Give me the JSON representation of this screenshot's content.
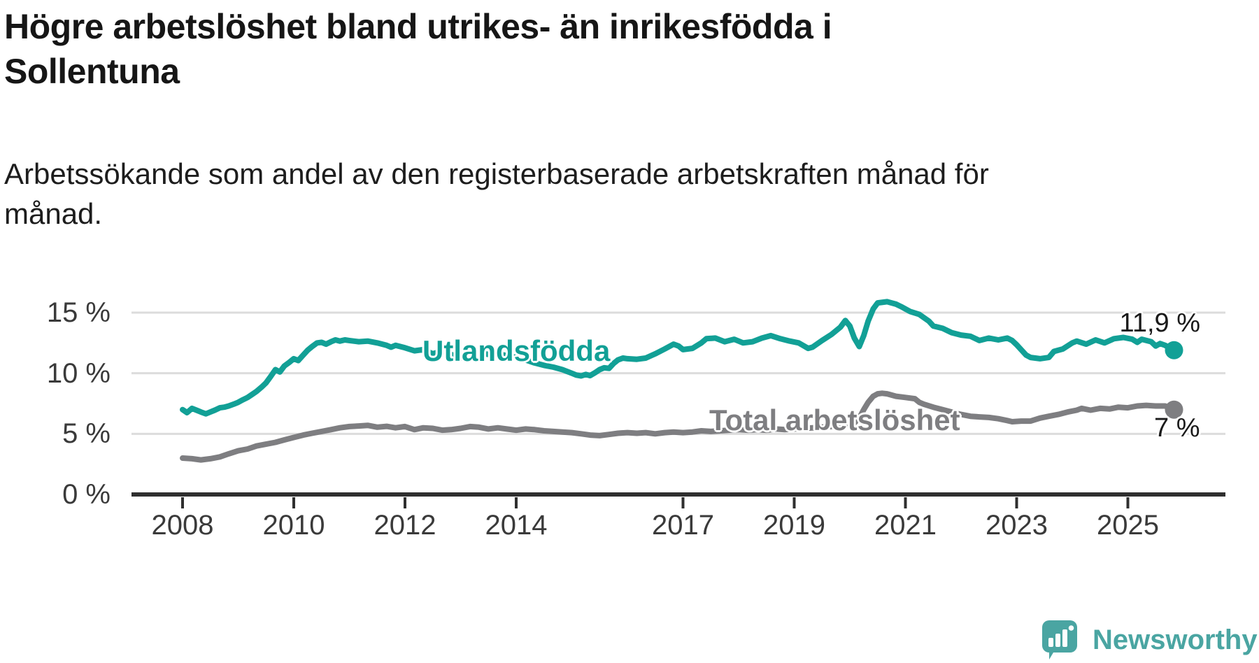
{
  "title": {
    "lines": [
      "Högre arbetslöshet bland utrikes- än inrikesfödda i",
      "Sollentuna"
    ],
    "full": "Högre arbetslöshet bland utrikes- än inrikesfödda i Sollentuna"
  },
  "subtitle": {
    "lines": [
      "Arbetssökande som andel av den registerbaserade arbetskraften månad för",
      "månad."
    ],
    "full": "Arbetssökande som andel av den registerbaserade arbetskraften månad för månad."
  },
  "branding": {
    "name": "Newsworthy",
    "icon": "newsworthy-bar-chart-bubble",
    "color": "#4aa5a2"
  },
  "colors": {
    "background": "#ffffff",
    "grid": "#dcdcdc",
    "axis": "#2f2f2f",
    "tick_text": "#3a3a3a",
    "end_label_text": "#1a1a1a",
    "series_foreign_born": "#12a096",
    "series_total": "#7e7e81"
  },
  "chart_data": {
    "type": "line",
    "title": "Högre arbetslöshet bland utrikes- än inrikesfödda i Sollentuna",
    "subtitle": "Arbetssökande som andel av den registerbaserade arbetskraften månad för månad.",
    "unit": "%",
    "grid": "horizontal",
    "legend_position": "inline-labels",
    "xlim": [
      2007.9,
      2026.7
    ],
    "ylim": [
      0,
      16.5
    ],
    "x_ticks": [
      {
        "value": 2008,
        "label": "2008"
      },
      {
        "value": 2010,
        "label": "2010"
      },
      {
        "value": 2012,
        "label": "2012"
      },
      {
        "value": 2014,
        "label": "2014"
      },
      {
        "value": 2017,
        "label": "2017"
      },
      {
        "value": 2019,
        "label": "2019"
      },
      {
        "value": 2021,
        "label": "2021"
      },
      {
        "value": 2023,
        "label": "2023"
      },
      {
        "value": 2025,
        "label": "2025"
      }
    ],
    "y_ticks": [
      {
        "value": 15,
        "label": "15 %"
      },
      {
        "value": 10,
        "label": "10 %"
      },
      {
        "value": 5,
        "label": "5 %"
      },
      {
        "value": 0,
        "label": "0 %"
      }
    ],
    "series": [
      {
        "name": "Utlandsfödda",
        "color": "#12a096",
        "end_label": "11,9 %",
        "end_value": 11.9,
        "points": [
          [
            2008.0,
            7.0
          ],
          [
            2008.08,
            6.75
          ],
          [
            2008.17,
            7.1
          ],
          [
            2008.25,
            6.95
          ],
          [
            2008.33,
            6.8
          ],
          [
            2008.42,
            6.65
          ],
          [
            2008.5,
            6.8
          ],
          [
            2008.58,
            6.95
          ],
          [
            2008.67,
            7.15
          ],
          [
            2008.75,
            7.2
          ],
          [
            2008.83,
            7.3
          ],
          [
            2008.92,
            7.45
          ],
          [
            2009.0,
            7.6
          ],
          [
            2009.08,
            7.8
          ],
          [
            2009.17,
            8.0
          ],
          [
            2009.25,
            8.25
          ],
          [
            2009.33,
            8.5
          ],
          [
            2009.42,
            8.85
          ],
          [
            2009.5,
            9.2
          ],
          [
            2009.58,
            9.7
          ],
          [
            2009.67,
            10.3
          ],
          [
            2009.75,
            10.1
          ],
          [
            2009.83,
            10.6
          ],
          [
            2009.92,
            10.9
          ],
          [
            2010.0,
            11.2
          ],
          [
            2010.08,
            11.05
          ],
          [
            2010.17,
            11.5
          ],
          [
            2010.25,
            11.9
          ],
          [
            2010.33,
            12.2
          ],
          [
            2010.42,
            12.5
          ],
          [
            2010.5,
            12.55
          ],
          [
            2010.58,
            12.4
          ],
          [
            2010.67,
            12.6
          ],
          [
            2010.75,
            12.75
          ],
          [
            2010.83,
            12.65
          ],
          [
            2010.92,
            12.75
          ],
          [
            2011.0,
            12.7
          ],
          [
            2011.17,
            12.6
          ],
          [
            2011.33,
            12.65
          ],
          [
            2011.5,
            12.5
          ],
          [
            2011.67,
            12.3
          ],
          [
            2011.75,
            12.15
          ],
          [
            2011.83,
            12.3
          ],
          [
            2012.0,
            12.1
          ],
          [
            2012.17,
            11.85
          ],
          [
            2012.33,
            11.95
          ],
          [
            2012.5,
            11.6
          ],
          [
            2012.67,
            11.85
          ],
          [
            2012.83,
            11.55
          ],
          [
            2013.0,
            11.25
          ],
          [
            2013.17,
            11.8
          ],
          [
            2013.33,
            11.7
          ],
          [
            2013.5,
            11.55
          ],
          [
            2013.67,
            11.6
          ],
          [
            2013.83,
            11.45
          ],
          [
            2014.0,
            11.3
          ],
          [
            2014.17,
            11.1
          ],
          [
            2014.33,
            10.85
          ],
          [
            2014.5,
            10.65
          ],
          [
            2014.67,
            10.5
          ],
          [
            2014.83,
            10.3
          ],
          [
            2015.0,
            10.0
          ],
          [
            2015.08,
            9.85
          ],
          [
            2015.17,
            9.78
          ],
          [
            2015.25,
            9.9
          ],
          [
            2015.33,
            9.8
          ],
          [
            2015.42,
            10.05
          ],
          [
            2015.5,
            10.3
          ],
          [
            2015.58,
            10.45
          ],
          [
            2015.67,
            10.4
          ],
          [
            2015.75,
            10.8
          ],
          [
            2015.83,
            11.1
          ],
          [
            2015.92,
            11.25
          ],
          [
            2016.0,
            11.2
          ],
          [
            2016.17,
            11.15
          ],
          [
            2016.33,
            11.25
          ],
          [
            2016.5,
            11.6
          ],
          [
            2016.67,
            12.0
          ],
          [
            2016.83,
            12.4
          ],
          [
            2016.92,
            12.25
          ],
          [
            2017.0,
            11.95
          ],
          [
            2017.17,
            12.05
          ],
          [
            2017.33,
            12.5
          ],
          [
            2017.42,
            12.85
          ],
          [
            2017.58,
            12.9
          ],
          [
            2017.75,
            12.6
          ],
          [
            2017.92,
            12.8
          ],
          [
            2018.08,
            12.5
          ],
          [
            2018.25,
            12.6
          ],
          [
            2018.42,
            12.9
          ],
          [
            2018.58,
            13.1
          ],
          [
            2018.75,
            12.85
          ],
          [
            2018.92,
            12.65
          ],
          [
            2019.08,
            12.5
          ],
          [
            2019.25,
            12.05
          ],
          [
            2019.33,
            12.15
          ],
          [
            2019.5,
            12.7
          ],
          [
            2019.67,
            13.2
          ],
          [
            2019.83,
            13.8
          ],
          [
            2019.92,
            14.35
          ],
          [
            2020.0,
            13.9
          ],
          [
            2020.08,
            12.9
          ],
          [
            2020.17,
            12.2
          ],
          [
            2020.25,
            13.1
          ],
          [
            2020.33,
            14.3
          ],
          [
            2020.42,
            15.3
          ],
          [
            2020.5,
            15.8
          ],
          [
            2020.67,
            15.9
          ],
          [
            2020.83,
            15.7
          ],
          [
            2020.92,
            15.5
          ],
          [
            2021.08,
            15.1
          ],
          [
            2021.25,
            14.85
          ],
          [
            2021.42,
            14.3
          ],
          [
            2021.5,
            13.9
          ],
          [
            2021.67,
            13.7
          ],
          [
            2021.83,
            13.35
          ],
          [
            2022.0,
            13.15
          ],
          [
            2022.17,
            13.05
          ],
          [
            2022.33,
            12.7
          ],
          [
            2022.5,
            12.9
          ],
          [
            2022.67,
            12.75
          ],
          [
            2022.83,
            12.9
          ],
          [
            2022.92,
            12.7
          ],
          [
            2023.0,
            12.35
          ],
          [
            2023.08,
            11.95
          ],
          [
            2023.17,
            11.5
          ],
          [
            2023.25,
            11.3
          ],
          [
            2023.42,
            11.2
          ],
          [
            2023.58,
            11.3
          ],
          [
            2023.67,
            11.8
          ],
          [
            2023.83,
            12.0
          ],
          [
            2024.0,
            12.5
          ],
          [
            2024.08,
            12.65
          ],
          [
            2024.25,
            12.4
          ],
          [
            2024.42,
            12.75
          ],
          [
            2024.58,
            12.5
          ],
          [
            2024.75,
            12.85
          ],
          [
            2024.92,
            12.95
          ],
          [
            2025.08,
            12.8
          ],
          [
            2025.17,
            12.55
          ],
          [
            2025.25,
            12.8
          ],
          [
            2025.42,
            12.6
          ],
          [
            2025.5,
            12.25
          ],
          [
            2025.58,
            12.45
          ],
          [
            2025.67,
            12.3
          ],
          [
            2025.83,
            11.9
          ]
        ]
      },
      {
        "name": "Total arbetslöshet",
        "color": "#7e7e81",
        "end_label": "7 %",
        "end_value": 7.0,
        "points": [
          [
            2008.0,
            3.0
          ],
          [
            2008.17,
            2.95
          ],
          [
            2008.33,
            2.85
          ],
          [
            2008.5,
            2.95
          ],
          [
            2008.67,
            3.1
          ],
          [
            2008.83,
            3.35
          ],
          [
            2009.0,
            3.6
          ],
          [
            2009.17,
            3.75
          ],
          [
            2009.33,
            4.0
          ],
          [
            2009.5,
            4.15
          ],
          [
            2009.67,
            4.3
          ],
          [
            2009.83,
            4.5
          ],
          [
            2010.0,
            4.7
          ],
          [
            2010.17,
            4.9
          ],
          [
            2010.33,
            5.05
          ],
          [
            2010.5,
            5.2
          ],
          [
            2010.67,
            5.35
          ],
          [
            2010.83,
            5.5
          ],
          [
            2011.0,
            5.6
          ],
          [
            2011.17,
            5.65
          ],
          [
            2011.33,
            5.7
          ],
          [
            2011.5,
            5.55
          ],
          [
            2011.67,
            5.62
          ],
          [
            2011.83,
            5.5
          ],
          [
            2012.0,
            5.6
          ],
          [
            2012.17,
            5.35
          ],
          [
            2012.33,
            5.5
          ],
          [
            2012.5,
            5.45
          ],
          [
            2012.67,
            5.3
          ],
          [
            2012.83,
            5.35
          ],
          [
            2013.0,
            5.45
          ],
          [
            2013.17,
            5.6
          ],
          [
            2013.33,
            5.55
          ],
          [
            2013.5,
            5.4
          ],
          [
            2013.67,
            5.5
          ],
          [
            2013.83,
            5.4
          ],
          [
            2014.0,
            5.3
          ],
          [
            2014.17,
            5.4
          ],
          [
            2014.33,
            5.35
          ],
          [
            2014.5,
            5.25
          ],
          [
            2014.67,
            5.2
          ],
          [
            2014.83,
            5.15
          ],
          [
            2015.0,
            5.1
          ],
          [
            2015.17,
            5.0
          ],
          [
            2015.33,
            4.9
          ],
          [
            2015.5,
            4.85
          ],
          [
            2015.67,
            4.95
          ],
          [
            2015.83,
            5.05
          ],
          [
            2016.0,
            5.1
          ],
          [
            2016.17,
            5.05
          ],
          [
            2016.33,
            5.1
          ],
          [
            2016.5,
            5.0
          ],
          [
            2016.67,
            5.1
          ],
          [
            2016.83,
            5.15
          ],
          [
            2017.0,
            5.1
          ],
          [
            2017.17,
            5.15
          ],
          [
            2017.33,
            5.25
          ],
          [
            2017.5,
            5.2
          ],
          [
            2017.67,
            5.25
          ],
          [
            2017.83,
            5.3
          ],
          [
            2018.0,
            5.35
          ],
          [
            2018.17,
            5.3
          ],
          [
            2018.33,
            5.35
          ],
          [
            2018.5,
            5.3
          ],
          [
            2018.67,
            5.4
          ],
          [
            2018.83,
            5.35
          ],
          [
            2019.0,
            5.4
          ],
          [
            2019.17,
            5.45
          ],
          [
            2019.33,
            5.5
          ],
          [
            2019.5,
            5.55
          ],
          [
            2019.67,
            5.6
          ],
          [
            2019.83,
            5.65
          ],
          [
            2020.0,
            5.75
          ],
          [
            2020.08,
            5.9
          ],
          [
            2020.17,
            6.3
          ],
          [
            2020.25,
            7.0
          ],
          [
            2020.33,
            7.6
          ],
          [
            2020.42,
            8.1
          ],
          [
            2020.5,
            8.3
          ],
          [
            2020.58,
            8.35
          ],
          [
            2020.67,
            8.3
          ],
          [
            2020.83,
            8.1
          ],
          [
            2021.0,
            8.0
          ],
          [
            2021.17,
            7.9
          ],
          [
            2021.25,
            7.6
          ],
          [
            2021.33,
            7.45
          ],
          [
            2021.5,
            7.2
          ],
          [
            2021.67,
            7.0
          ],
          [
            2021.83,
            6.8
          ],
          [
            2022.0,
            6.6
          ],
          [
            2022.17,
            6.45
          ],
          [
            2022.33,
            6.4
          ],
          [
            2022.5,
            6.35
          ],
          [
            2022.67,
            6.25
          ],
          [
            2022.83,
            6.1
          ],
          [
            2022.92,
            6.0
          ],
          [
            2023.08,
            6.05
          ],
          [
            2023.25,
            6.05
          ],
          [
            2023.42,
            6.3
          ],
          [
            2023.58,
            6.45
          ],
          [
            2023.75,
            6.6
          ],
          [
            2023.92,
            6.8
          ],
          [
            2024.08,
            6.95
          ],
          [
            2024.17,
            7.1
          ],
          [
            2024.33,
            6.95
          ],
          [
            2024.5,
            7.1
          ],
          [
            2024.67,
            7.05
          ],
          [
            2024.83,
            7.2
          ],
          [
            2025.0,
            7.15
          ],
          [
            2025.17,
            7.3
          ],
          [
            2025.33,
            7.35
          ],
          [
            2025.5,
            7.3
          ],
          [
            2025.67,
            7.3
          ],
          [
            2025.83,
            7.0
          ]
        ]
      }
    ]
  }
}
